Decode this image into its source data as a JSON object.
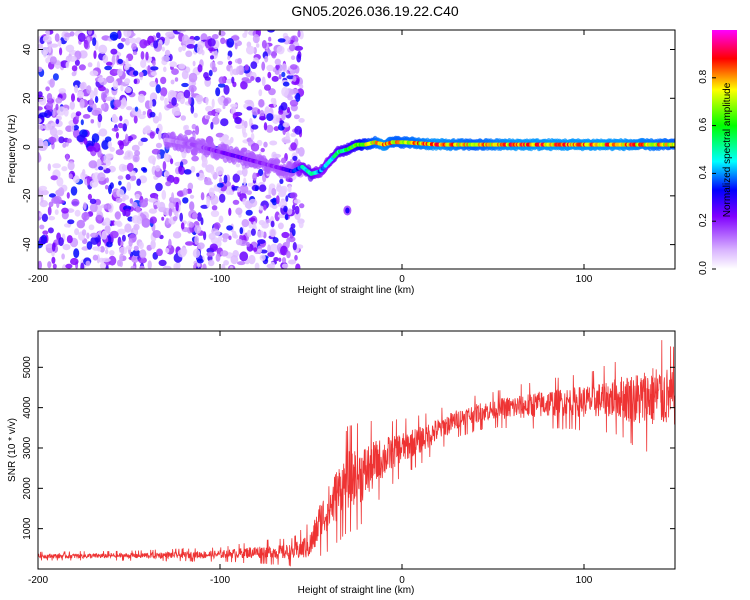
{
  "title": "GN05.2026.036.19.22.C40",
  "chart_data": [
    {
      "type": "heatmap",
      "xlabel": "Height of straight line (km)",
      "ylabel": "Frequency (Hz)",
      "xlim": [
        -200,
        150
      ],
      "ylim": [
        -50,
        48
      ],
      "x_ticks": [
        -200,
        -100,
        0,
        100
      ],
      "x_tick_labels": [
        "-200",
        "-100",
        "0",
        "100"
      ],
      "y_ticks": [
        -40,
        -20,
        0,
        20,
        40
      ],
      "y_tick_labels": [
        "-40",
        "-20",
        "0",
        "20",
        "40"
      ],
      "colorbar": {
        "label": "Normalized spectral amplitude",
        "range": [
          0,
          1
        ],
        "ticks": [
          0.0,
          0.2,
          0.4,
          0.6,
          0.8
        ],
        "tick_labels": [
          "0.0",
          "0.2",
          "0.4",
          "0.6",
          "0.8"
        ],
        "colors": [
          "#ffffff",
          "#d9b3ff",
          "#8000ff",
          "#0000ff",
          "#00ffff",
          "#00ff00",
          "#ffff00",
          "#ff0000",
          "#ff00ff"
        ]
      },
      "signal_trace": {
        "x": [
          -130,
          -115,
          -100,
          -90,
          -80,
          -70,
          -60,
          -55,
          -50,
          -45,
          -40,
          -35,
          -30,
          -25,
          -20,
          -15,
          -10,
          -5,
          0,
          20,
          40,
          60,
          80,
          100,
          120,
          150
        ],
        "frequency": [
          3,
          1,
          -2,
          -4,
          -6,
          -8,
          -10,
          -8,
          -11,
          -10,
          -6,
          -2,
          -1,
          1,
          1,
          2,
          1,
          2,
          2,
          1,
          1,
          1,
          1,
          1,
          1,
          1
        ],
        "amplitude": [
          0.1,
          0.15,
          0.2,
          0.25,
          0.2,
          0.18,
          0.3,
          0.45,
          0.5,
          0.4,
          0.45,
          0.5,
          0.55,
          0.6,
          0.7,
          0.75,
          0.8,
          0.75,
          0.75,
          0.8,
          0.75,
          0.8,
          0.8,
          0.8,
          0.8,
          0.75
        ]
      },
      "noise_region_x": [
        -200,
        -55
      ],
      "blobs": [
        {
          "x": -30,
          "frequency": -26,
          "amplitude": 0.3
        }
      ]
    },
    {
      "type": "line",
      "xlabel": "Height of straight line (km)",
      "ylabel": "SNR (10 * v/v)",
      "xlim": [
        -200,
        150
      ],
      "ylim": [
        0,
        5900
      ],
      "x_ticks": [
        -200,
        -100,
        0,
        100
      ],
      "x_tick_labels": [
        "-200",
        "-100",
        "0",
        "100"
      ],
      "y_ticks": [
        1000,
        2000,
        3000,
        4000,
        5000
      ],
      "y_tick_labels": [
        "1000",
        "2000",
        "3000",
        "4000",
        "5000"
      ],
      "line_color": "#ee3333",
      "series": [
        {
          "name": "SNR",
          "x": [
            -200,
            -150,
            -100,
            -80,
            -60,
            -50,
            -45,
            -40,
            -35,
            -30,
            -25,
            -20,
            -15,
            -10,
            -5,
            0,
            10,
            20,
            30,
            40,
            50,
            60,
            80,
            100,
            110,
            120,
            130,
            140,
            150
          ],
          "values": [
            320,
            330,
            360,
            420,
            420,
            600,
            1200,
            1500,
            1900,
            2200,
            2300,
            2400,
            2600,
            2750,
            2900,
            3000,
            3200,
            3450,
            3700,
            3850,
            3950,
            4000,
            4100,
            4150,
            4200,
            4250,
            4200,
            4300,
            4250
          ],
          "noise_amplitude": [
            60,
            70,
            100,
            160,
            200,
            350,
            500,
            600,
            700,
            750,
            750,
            700,
            600,
            500,
            450,
            400,
            350,
            300,
            250,
            250,
            250,
            300,
            350,
            400,
            450,
            550,
            700,
            800,
            700
          ]
        }
      ]
    }
  ]
}
